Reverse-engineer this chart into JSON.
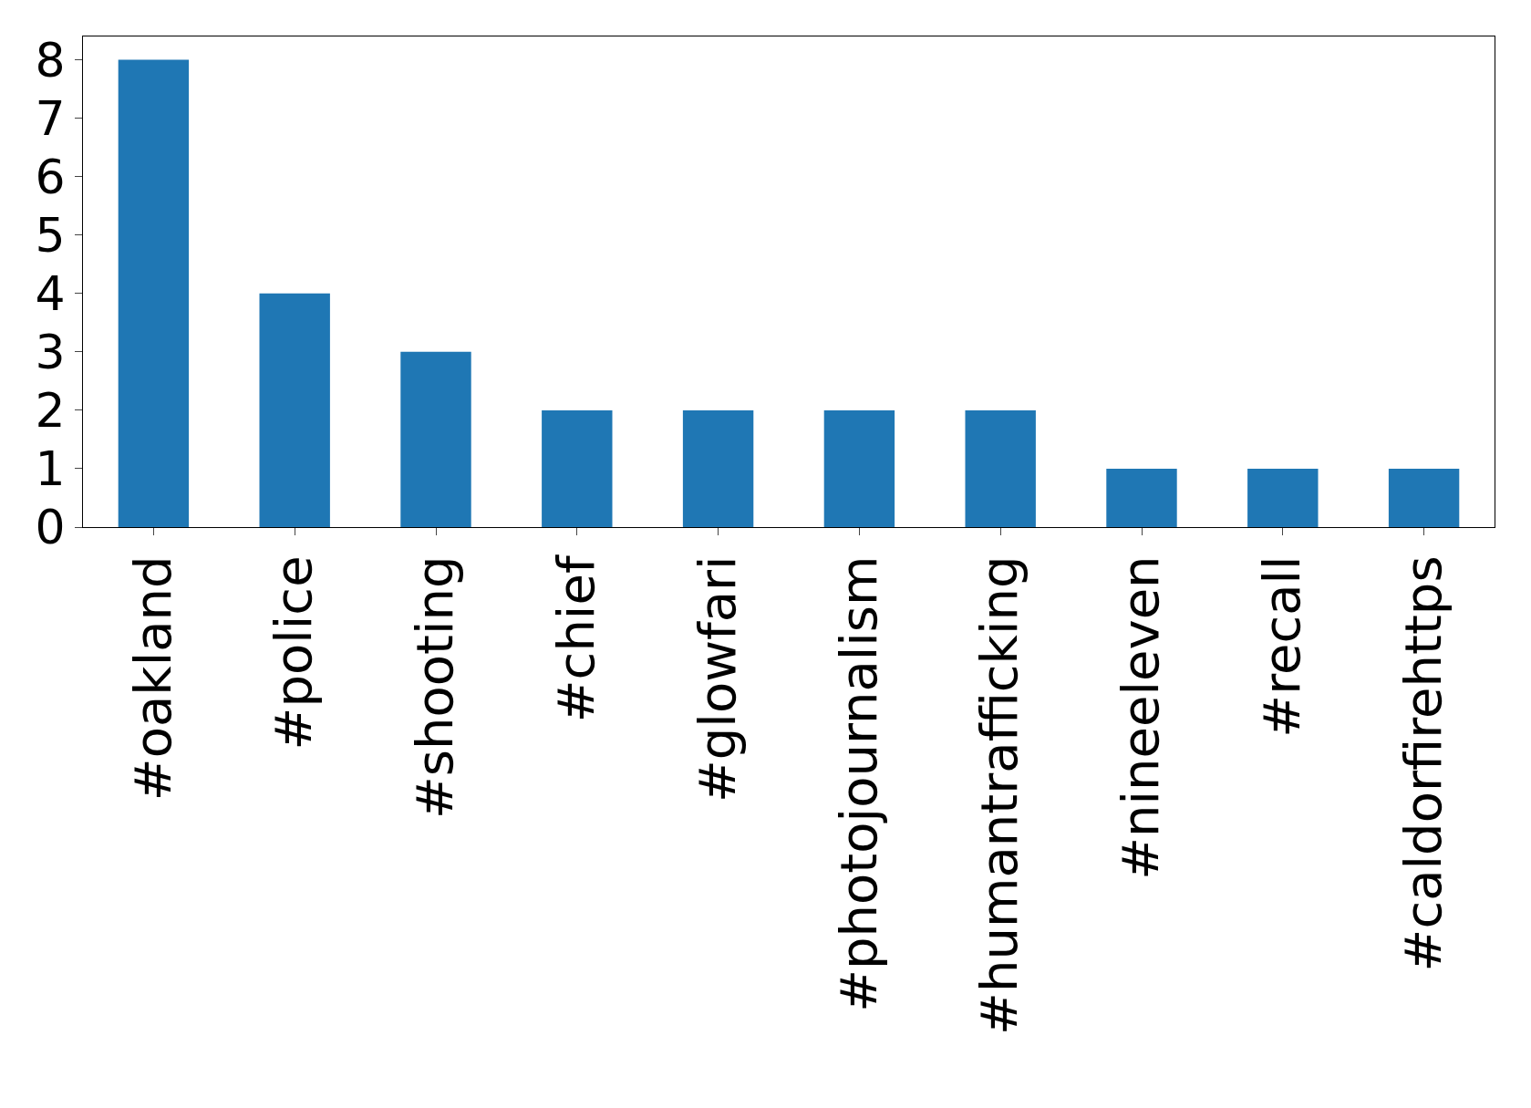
{
  "chart_data": {
    "type": "bar",
    "categories": [
      "#oakland",
      "#police",
      "#shooting",
      "#chief",
      "#glowfari",
      "#photojournalism",
      "#humantrafficking",
      "#nineeleven",
      "#recall",
      "#caldorfirehttps"
    ],
    "values": [
      8,
      4,
      3,
      2,
      2,
      2,
      2,
      1,
      1,
      1
    ],
    "color": "#1f77b4",
    "ylim": [
      0,
      8.4
    ],
    "yticks": [
      0,
      1,
      2,
      3,
      4,
      5,
      6,
      7,
      8
    ]
  }
}
